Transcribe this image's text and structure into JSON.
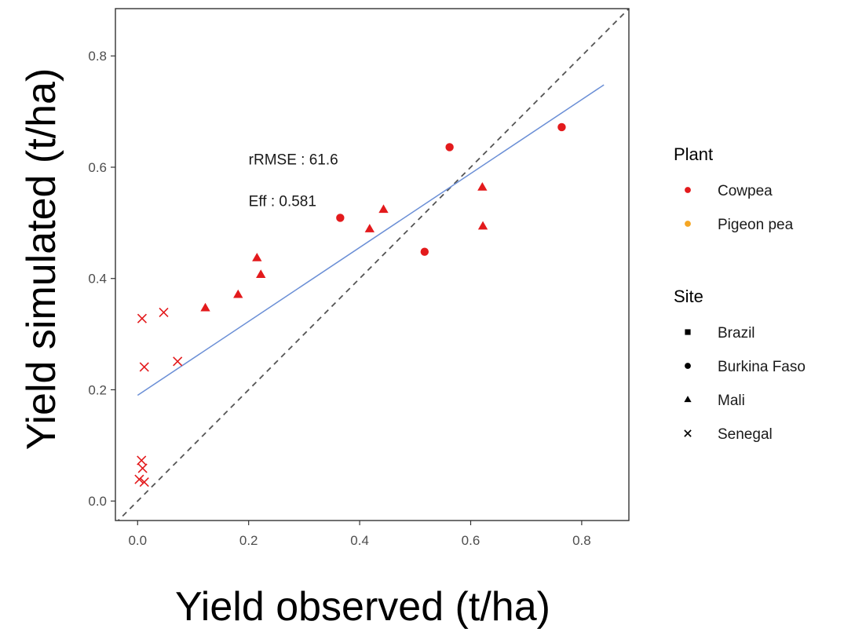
{
  "chart_data": {
    "type": "scatter",
    "xlabel": "Yield observed (t/ha)",
    "ylabel": "Yield simulated (t/ha)",
    "xlim": [
      -0.04,
      0.885
    ],
    "ylim": [
      -0.035,
      0.885
    ],
    "x_ticks": [
      0.0,
      0.2,
      0.4,
      0.6,
      0.8
    ],
    "y_ticks": [
      0.0,
      0.2,
      0.4,
      0.6,
      0.8
    ],
    "x_tick_labels": [
      "0.0",
      "0.2",
      "0.4",
      "0.6",
      "0.8"
    ],
    "y_tick_labels": [
      "0.0",
      "0.2",
      "0.4",
      "0.6",
      "0.8"
    ],
    "grid": false,
    "legend_placement": "right",
    "annotations": [
      {
        "text": "rRMSE : 61.6",
        "x": 0.2,
        "y": 0.605
      },
      {
        "text": "Eff : 0.581",
        "x": 0.2,
        "y": 0.53
      }
    ],
    "reference_line": {
      "type": "1:1",
      "style": "dashed",
      "color": "#555555"
    },
    "fit_line": {
      "x": [
        0.0,
        0.84
      ],
      "y": [
        0.19,
        0.748
      ],
      "color": "#6b8fd6"
    },
    "colors": {
      "Cowpea": "#e31a1c",
      "Pigeon pea": "#f5a623"
    },
    "series": [
      {
        "plant": "Cowpea",
        "site": "Burkina Faso",
        "shape": "circle",
        "x": [
          0.365,
          0.517,
          0.562,
          0.764
        ],
        "y": [
          0.509,
          0.448,
          0.636,
          0.672
        ]
      },
      {
        "plant": "Cowpea",
        "site": "Mali",
        "shape": "triangle",
        "x": [
          0.122,
          0.181,
          0.215,
          0.222,
          0.418,
          0.443,
          0.621,
          0.622
        ],
        "y": [
          0.347,
          0.371,
          0.437,
          0.407,
          0.489,
          0.524,
          0.564,
          0.494
        ]
      },
      {
        "plant": "Cowpea",
        "site": "Senegal",
        "shape": "cross",
        "x": [
          0.008,
          0.047,
          0.012,
          0.072,
          0.007,
          0.009,
          0.003,
          0.012
        ],
        "y": [
          0.328,
          0.339,
          0.241,
          0.251,
          0.073,
          0.059,
          0.039,
          0.034
        ]
      }
    ],
    "legend": {
      "plant_title": "Plant",
      "plant_items": [
        {
          "label": "Cowpea",
          "color": "#e31a1c"
        },
        {
          "label": "Pigeon pea",
          "color": "#f5a623"
        }
      ],
      "site_title": "Site",
      "site_items": [
        {
          "label": "Brazil",
          "shape": "square"
        },
        {
          "label": "Burkina Faso",
          "shape": "circle"
        },
        {
          "label": "Mali",
          "shape": "triangle"
        },
        {
          "label": "Senegal",
          "shape": "cross"
        }
      ]
    }
  }
}
